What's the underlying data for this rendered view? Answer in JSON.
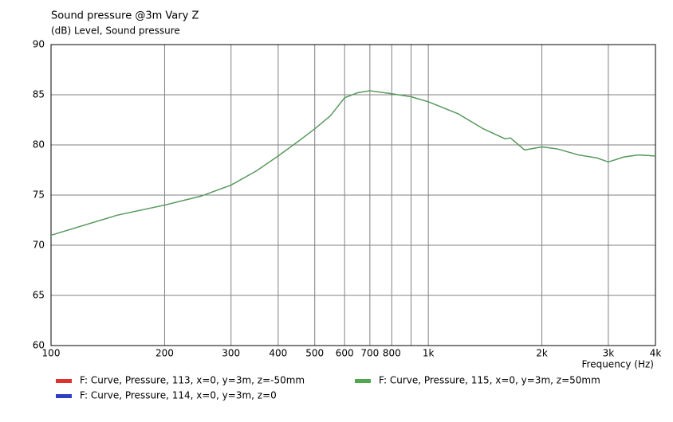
{
  "chart_data": {
    "type": "line",
    "title": "Sound pressure @3m Vary Z",
    "subtitle": "(dB)  Level, Sound pressure",
    "x_label": "Frequency  (Hz)",
    "x_scale": "log",
    "grid": true,
    "xlim": [
      100,
      4000
    ],
    "ylim": [
      60,
      90
    ],
    "xticks": [
      100,
      200,
      300,
      400,
      500,
      600,
      700,
      800,
      {
        "value": 900,
        "label": null
      },
      {
        "value": 1000,
        "label": "1k"
      },
      {
        "value": 2000,
        "label": "2k"
      },
      {
        "value": 3000,
        "label": "3k"
      },
      {
        "value": 4000,
        "label": "4k"
      }
    ],
    "yticks": [
      60,
      65,
      70,
      75,
      80,
      85,
      90
    ],
    "x": [
      100,
      150,
      200,
      250,
      300,
      350,
      400,
      450,
      500,
      550,
      600,
      650,
      700,
      800,
      900,
      1000,
      1200,
      1400,
      1600,
      1650,
      1800,
      2000,
      2200,
      2500,
      2800,
      3000,
      3300,
      3600,
      4000
    ],
    "series": [
      {
        "name": "F: Curve, Pressure, 113, x=0, y=3m, z=-50mm",
        "color": "#e03030",
        "values": [
          71.0,
          73.0,
          74.0,
          74.9,
          76.0,
          77.4,
          78.9,
          80.3,
          81.6,
          82.9,
          84.7,
          85.2,
          85.4,
          85.1,
          84.8,
          84.3,
          83.1,
          81.6,
          80.6,
          80.7,
          79.5,
          79.8,
          79.6,
          79.0,
          78.7,
          78.3,
          78.8,
          79.0,
          78.9
        ]
      },
      {
        "name": "F: Curve, Pressure, 114, x=0, y=3m, z=0",
        "color": "#3040c0",
        "values": [
          71.0,
          73.0,
          74.0,
          74.9,
          76.0,
          77.4,
          78.9,
          80.3,
          81.6,
          82.9,
          84.7,
          85.2,
          85.4,
          85.1,
          84.8,
          84.3,
          83.1,
          81.6,
          80.6,
          80.7,
          79.5,
          79.8,
          79.6,
          79.0,
          78.7,
          78.3,
          78.8,
          79.0,
          78.9
        ]
      },
      {
        "name": "F: Curve, Pressure, 115, x=0, y=3m, z=50mm",
        "color": "#50a850",
        "values": [
          71.0,
          73.0,
          74.0,
          74.9,
          76.0,
          77.4,
          78.9,
          80.3,
          81.6,
          82.9,
          84.7,
          85.2,
          85.4,
          85.1,
          84.8,
          84.3,
          83.1,
          81.6,
          80.6,
          80.7,
          79.5,
          79.8,
          79.6,
          79.0,
          78.7,
          78.3,
          78.8,
          79.0,
          78.9
        ]
      }
    ]
  }
}
